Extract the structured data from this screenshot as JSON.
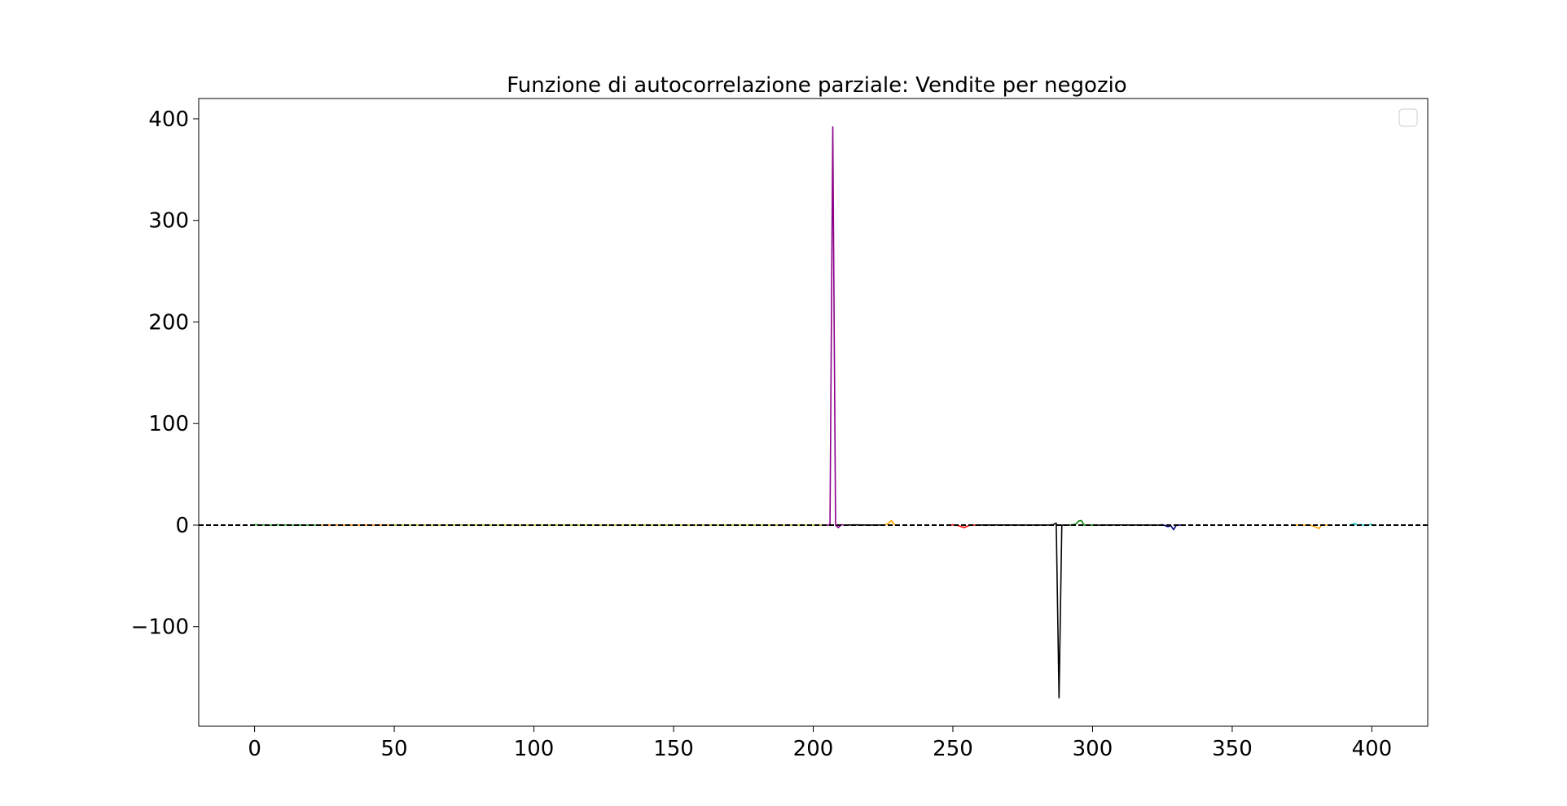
{
  "chart_data": {
    "type": "line",
    "title": "Funzione di autocorrelazione parziale: Vendite per negozio",
    "xlabel": "",
    "ylabel": "",
    "xlim": [
      -20,
      420
    ],
    "ylim": [
      -198,
      420
    ],
    "xticks": [
      0,
      50,
      100,
      150,
      200,
      250,
      300,
      350,
      400
    ],
    "yticks": [
      400,
      300,
      200,
      100,
      0,
      -100
    ],
    "ytick_labels": [
      "400",
      "300",
      "200",
      "100",
      "0",
      "−100"
    ],
    "grid": false,
    "legend": {
      "placement": "top-right",
      "entries": []
    },
    "reference_line": {
      "y": 0,
      "style": "dashed",
      "color": "#000000"
    },
    "series": [
      {
        "color": "#2ca02c",
        "x": [
          0,
          2,
          4,
          6,
          8,
          10,
          12,
          14,
          16,
          18,
          20,
          22,
          24
        ],
        "y": [
          0.4,
          0.1,
          0.2,
          -0.1,
          0.3,
          0.1,
          0.2,
          0.0,
          0.1,
          0.0,
          0.1,
          0.0,
          0.0
        ]
      },
      {
        "color": "#ff7f0e",
        "x": [
          24,
          26,
          28,
          30,
          32,
          34,
          36,
          38,
          40,
          42,
          44,
          46,
          48
        ],
        "y": [
          0.1,
          0.0,
          0.1,
          0.0,
          0.0,
          0.1,
          0.0,
          0.0,
          0.1,
          0.0,
          0.0,
          0.0,
          0.0
        ]
      },
      {
        "color": "#bcbd22",
        "x": [
          48,
          60,
          72,
          84,
          96,
          108,
          120,
          132,
          144,
          156,
          168,
          180,
          192,
          203
        ],
        "y": [
          0.0,
          0.0,
          0.1,
          0.0,
          0.0,
          0.0,
          0.0,
          0.0,
          0.0,
          0.0,
          0.0,
          0.0,
          0.0,
          0.0
        ]
      },
      {
        "color": "#8b008b",
        "x": [
          203,
          204,
          205,
          206,
          207,
          208,
          209,
          210,
          211
        ],
        "y": [
          0.0,
          0.0,
          0.0,
          0.0,
          392.0,
          0.0,
          -2.5,
          0.5,
          0.0
        ]
      },
      {
        "color": "#000000",
        "x": [
          211,
          215,
          220,
          225
        ],
        "y": [
          0.0,
          0.2,
          0.0,
          0.1
        ]
      },
      {
        "color": "#ffa500",
        "x": [
          225,
          226,
          227,
          228,
          229,
          230,
          231
        ],
        "y": [
          0.0,
          0.5,
          2.0,
          4.5,
          0.5,
          0.0,
          0.0
        ]
      },
      {
        "color": "#ff0000",
        "x": [
          248,
          250,
          252,
          254,
          256,
          258
        ],
        "y": [
          0.0,
          0.2,
          -0.5,
          -2.5,
          0.0,
          0.0
        ]
      },
      {
        "color": "#000000",
        "x": [
          258,
          265,
          275,
          284,
          286,
          287,
          288,
          289,
          290,
          292
        ],
        "y": [
          0.0,
          0.1,
          0.0,
          0.0,
          0.5,
          2.0,
          -170.0,
          0.0,
          0.0,
          0.0
        ]
      },
      {
        "color": "#008000",
        "x": [
          292,
          294,
          295,
          296,
          297,
          299,
          302
        ],
        "y": [
          0.0,
          1.0,
          4.0,
          4.5,
          0.0,
          0.0,
          0.0
        ]
      },
      {
        "color": "#000000",
        "x": [
          302,
          310,
          318,
          324,
          325
        ],
        "y": [
          0.0,
          0.1,
          0.0,
          0.0,
          0.5
        ]
      },
      {
        "color": "#000080",
        "x": [
          325,
          327,
          328,
          329,
          330,
          332
        ],
        "y": [
          0.5,
          -1.5,
          -0.5,
          -4.5,
          0.0,
          0.0
        ]
      },
      {
        "color": "#ffa500",
        "x": [
          372,
          378,
          380,
          381,
          382,
          384
        ],
        "y": [
          0.0,
          0.0,
          -2.0,
          -3.5,
          0.0,
          0.0
        ]
      },
      {
        "color": "#00ced1",
        "x": [
          392,
          394,
          395,
          396,
          398,
          400
        ],
        "y": [
          0.0,
          1.5,
          -0.5,
          0.5,
          -0.5,
          1.0
        ]
      }
    ]
  }
}
